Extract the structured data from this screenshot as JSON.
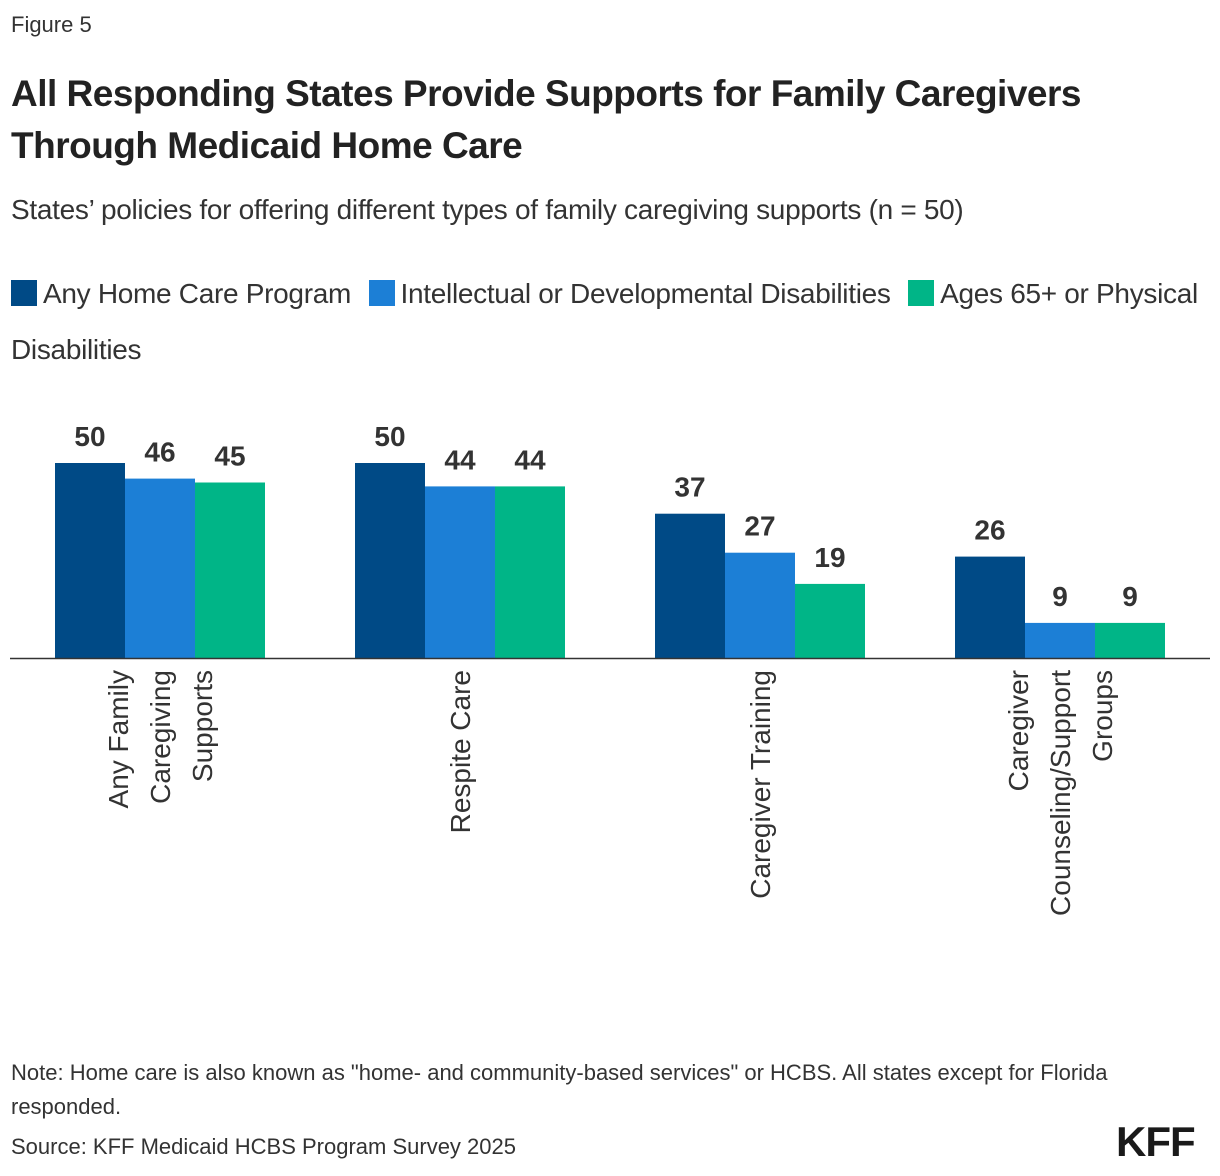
{
  "figure_label": "Figure 5",
  "title": "All Responding States Provide Supports for Family Caregivers Through Medicaid Home Care",
  "subtitle": "States’ policies for offering different types of family caregiving supports (n = 50)",
  "note": "Note: Home care is also known as \"home- and community-based services\" or HCBS. All states except for Florida responded.",
  "source": "Source: KFF Medicaid HCBS Program Survey 2025",
  "logo": "KFF",
  "chart_data": {
    "type": "bar",
    "orientation": "vertical",
    "grouped": true,
    "categories": [
      "Any Family Caregiving Supports",
      "Respite Care",
      "Caregiver Training",
      "Caregiver Counseling/Support Groups"
    ],
    "category_label_lines": [
      [
        "Any Family",
        "Caregiving",
        "Supports"
      ],
      [
        "Respite Care"
      ],
      [
        "Caregiver Training"
      ],
      [
        "Caregiver",
        "Counseling/Support",
        "Groups"
      ]
    ],
    "series": [
      {
        "name": "Any Home Care Program",
        "color": "#004a86",
        "values": [
          50,
          50,
          37,
          26
        ]
      },
      {
        "name": "Intellectual or Developmental Disabilities",
        "color": "#1c7fd6",
        "values": [
          46,
          44,
          27,
          9
        ]
      },
      {
        "name": "Ages 65+ or Physical Disabilities",
        "color": "#00b587",
        "values": [
          45,
          44,
          19,
          9
        ]
      }
    ],
    "ylim": [
      0,
      50
    ],
    "y_axis_visible": false,
    "grid": false,
    "data_labels": true,
    "legend_position": "top"
  }
}
